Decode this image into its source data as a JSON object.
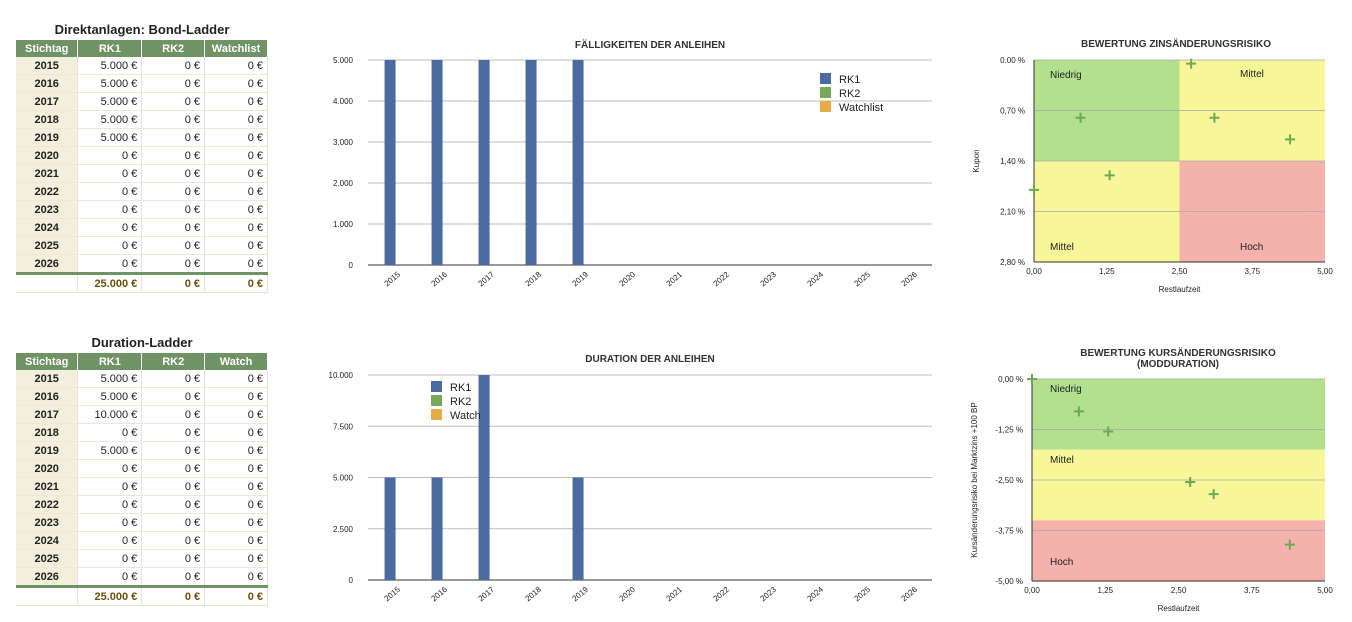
{
  "table1": {
    "title": "Direktanlagen: Bond-Ladder",
    "headers": [
      "Stichtag",
      "RK1",
      "RK2",
      "Watchlist"
    ],
    "rows": [
      [
        "2015",
        "5.000 €",
        "0 €",
        "0 €"
      ],
      [
        "2016",
        "5.000 €",
        "0 €",
        "0 €"
      ],
      [
        "2017",
        "5.000 €",
        "0 €",
        "0 €"
      ],
      [
        "2018",
        "5.000 €",
        "0 €",
        "0 €"
      ],
      [
        "2019",
        "5.000 €",
        "0 €",
        "0 €"
      ],
      [
        "2020",
        "0 €",
        "0 €",
        "0 €"
      ],
      [
        "2021",
        "0 €",
        "0 €",
        "0 €"
      ],
      [
        "2022",
        "0 €",
        "0 €",
        "0 €"
      ],
      [
        "2023",
        "0 €",
        "0 €",
        "0 €"
      ],
      [
        "2024",
        "0 €",
        "0 €",
        "0 €"
      ],
      [
        "2025",
        "0 €",
        "0 €",
        "0 €"
      ],
      [
        "2026",
        "0 €",
        "0 €",
        "0 €"
      ]
    ],
    "totals": [
      "",
      "25.000 €",
      "0 €",
      "0 €"
    ]
  },
  "table2": {
    "title": "Duration-Ladder",
    "headers": [
      "Stichtag",
      "RK1",
      "RK2",
      "Watch"
    ],
    "rows": [
      [
        "2015",
        "5.000 €",
        "0 €",
        "0 €"
      ],
      [
        "2016",
        "5.000 €",
        "0 €",
        "0 €"
      ],
      [
        "2017",
        "10.000 €",
        "0 €",
        "0 €"
      ],
      [
        "2018",
        "0 €",
        "0 €",
        "0 €"
      ],
      [
        "2019",
        "5.000 €",
        "0 €",
        "0 €"
      ],
      [
        "2020",
        "0 €",
        "0 €",
        "0 €"
      ],
      [
        "2021",
        "0 €",
        "0 €",
        "0 €"
      ],
      [
        "2022",
        "0 €",
        "0 €",
        "0 €"
      ],
      [
        "2023",
        "0 €",
        "0 €",
        "0 €"
      ],
      [
        "2024",
        "0 €",
        "0 €",
        "0 €"
      ],
      [
        "2025",
        "0 €",
        "0 €",
        "0 €"
      ],
      [
        "2026",
        "0 €",
        "0 €",
        "0 €"
      ]
    ],
    "totals": [
      "",
      "25.000 €",
      "0 €",
      "0 €"
    ]
  },
  "colors": {
    "rk1": "#4a6aa0",
    "rk2": "#78a85a",
    "watch": "#e5ad45",
    "green_zone": "#b3e08c",
    "yellow_zone": "#f7f79a",
    "red_zone": "#f5b2ad",
    "marker": "#6da857",
    "header_bg": "#6f9365",
    "year_bg": "#f3efdd"
  },
  "chart_data": [
    {
      "type": "bar",
      "title": "FÄLLIGKEITEN DER ANLEIHEN",
      "categories": [
        "2015",
        "2016",
        "2017",
        "2018",
        "2019",
        "2020",
        "2021",
        "2022",
        "2023",
        "2024",
        "2025",
        "2026"
      ],
      "series": [
        {
          "name": "RK1",
          "values": [
            5000,
            5000,
            5000,
            5000,
            5000,
            0,
            0,
            0,
            0,
            0,
            0,
            0
          ]
        },
        {
          "name": "RK2",
          "values": [
            0,
            0,
            0,
            0,
            0,
            0,
            0,
            0,
            0,
            0,
            0,
            0
          ]
        },
        {
          "name": "Watchlist",
          "values": [
            0,
            0,
            0,
            0,
            0,
            0,
            0,
            0,
            0,
            0,
            0,
            0
          ]
        }
      ],
      "ylim": [
        0,
        5000
      ],
      "yticks": [
        "0",
        "1.000",
        "2.000",
        "3.000",
        "4.000",
        "5.000"
      ],
      "legend": "top-right"
    },
    {
      "type": "scatter",
      "title": "BEWERTUNG ZINSÄNDERUNGSRISIKO",
      "xlabel": "Restlaufzeit",
      "ylabel": "Kupon",
      "xlim": [
        0,
        5
      ],
      "ylim": [
        0,
        2.8
      ],
      "xticks": [
        "0,00",
        "1,25",
        "2,50",
        "3,75",
        "5,00"
      ],
      "yticks": [
        "0.00 %",
        "0,70 %",
        "1,40 %",
        "2,10 %",
        "2,80 %"
      ],
      "zones": [
        "Niedrig",
        "Mittel",
        "Mittel",
        "Hoch"
      ],
      "points": [
        [
          0,
          1.0
        ],
        [
          0.8,
          2.0
        ],
        [
          1.3,
          1.2
        ],
        [
          2.7,
          2.75
        ],
        [
          3.1,
          2.0
        ],
        [
          4.4,
          1.7
        ]
      ]
    },
    {
      "type": "bar",
      "title": "DURATION DER ANLEIHEN",
      "categories": [
        "2015",
        "2016",
        "2017",
        "2018",
        "2019",
        "2020",
        "2021",
        "2022",
        "2023",
        "2024",
        "2025",
        "2026"
      ],
      "series": [
        {
          "name": "RK1",
          "values": [
            5000,
            5000,
            10000,
            0,
            5000,
            0,
            0,
            0,
            0,
            0,
            0,
            0
          ]
        },
        {
          "name": "RK2",
          "values": [
            0,
            0,
            0,
            0,
            0,
            0,
            0,
            0,
            0,
            0,
            0,
            0
          ]
        },
        {
          "name": "Watch",
          "values": [
            0,
            0,
            0,
            0,
            0,
            0,
            0,
            0,
            0,
            0,
            0,
            0
          ]
        }
      ],
      "ylim": [
        0,
        10000
      ],
      "yticks": [
        "0",
        "2.500",
        "5.000",
        "7.500",
        "10.000"
      ],
      "legend": "top-left"
    },
    {
      "type": "scatter",
      "title": "BEWERTUNG KURSÄNDERUNGSRISIKO",
      "subtitle": "(MODDURATION)",
      "xlabel": "Restlaufzeit",
      "ylabel": "Kursänderungsrisiko bei Marktzins +100 BP",
      "xlim": [
        0,
        5
      ],
      "ylim": [
        -5,
        0
      ],
      "xticks": [
        "0,00",
        "1,25",
        "2,50",
        "3,75",
        "5,00"
      ],
      "yticks": [
        "0,00 %",
        "-1,25 %",
        "-2,50 %",
        "-3,75 %",
        "-5,00 %"
      ],
      "zones": [
        "Niedrig",
        "Mittel",
        "Hoch"
      ],
      "points": [
        [
          0,
          0
        ],
        [
          0.8,
          -0.8
        ],
        [
          1.3,
          -1.3
        ],
        [
          2.7,
          -2.55
        ],
        [
          3.1,
          -2.85
        ],
        [
          4.4,
          -4.1
        ]
      ]
    }
  ]
}
